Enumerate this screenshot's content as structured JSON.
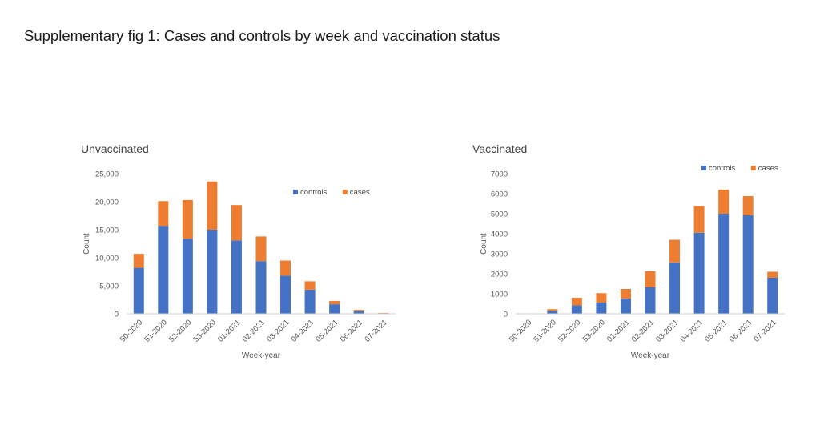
{
  "page": {
    "title": "Supplementary fig 1:  Cases and controls by week and vaccination status"
  },
  "chart_data": [
    {
      "type": "bar",
      "stacked": true,
      "title": "Unvaccinated",
      "xlabel": "Week-year",
      "ylabel": "Count",
      "ylim": [
        0,
        25000
      ],
      "yticks": [
        0,
        5000,
        10000,
        15000,
        20000,
        25000
      ],
      "ytick_labels": [
        "0",
        "5,000",
        "10,000",
        "15,000",
        "20,000",
        "25,000"
      ],
      "categories": [
        "50-2020",
        "51-2020",
        "52-2020",
        "53-2020",
        "01-2021",
        "02-2021",
        "03-2021",
        "04-2021",
        "05-2021",
        "06-2021",
        "07-2021"
      ],
      "series": [
        {
          "name": "controls",
          "color": "#4472C4",
          "values": [
            8200,
            15700,
            13400,
            15000,
            13100,
            9400,
            6800,
            4300,
            1700,
            500,
            100
          ]
        },
        {
          "name": "cases",
          "color": "#ED7D31",
          "values": [
            2500,
            4400,
            6900,
            8600,
            6300,
            4400,
            2700,
            1500,
            600,
            200,
            50
          ]
        }
      ],
      "legend_position": "top-right",
      "grid": false
    },
    {
      "type": "bar",
      "stacked": true,
      "title": "Vaccinated",
      "xlabel": "Week-year",
      "ylabel": "Count",
      "ylim": [
        0,
        7000
      ],
      "yticks": [
        0,
        1000,
        2000,
        3000,
        4000,
        5000,
        6000,
        7000
      ],
      "ytick_labels": [
        "0",
        "1000",
        "2000",
        "3000",
        "4000",
        "5000",
        "6000",
        "7000"
      ],
      "categories": [
        "50-2020",
        "51-2020",
        "52-2020",
        "53-2020",
        "01-2021",
        "02-2021",
        "03-2021",
        "04-2021",
        "05-2021",
        "06-2021",
        "07-2021"
      ],
      "series": [
        {
          "name": "controls",
          "color": "#4472C4",
          "values": [
            0,
            150,
            420,
            560,
            760,
            1330,
            2570,
            4050,
            5000,
            4930,
            1800
          ]
        },
        {
          "name": "cases",
          "color": "#ED7D31",
          "values": [
            0,
            80,
            380,
            470,
            480,
            800,
            1130,
            1330,
            1200,
            950,
            300
          ]
        }
      ],
      "legend_position": "top-right",
      "grid": false
    }
  ]
}
